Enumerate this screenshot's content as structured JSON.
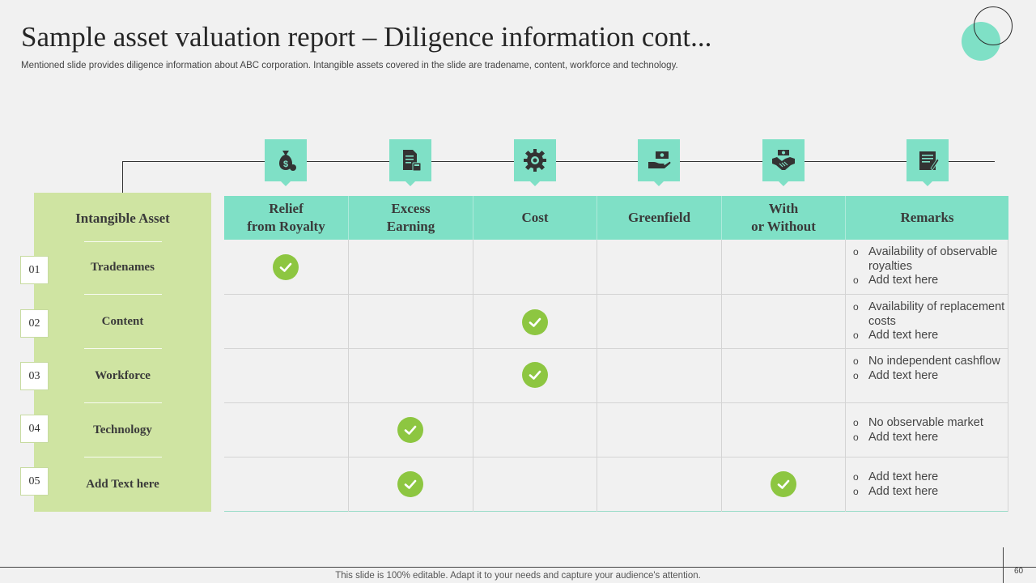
{
  "title": "Sample asset valuation report – Diligence information cont...",
  "subtitle": "Mentioned slide provides diligence information about ABC corporation. Intangible assets covered in the slide are tradename, content, workforce and technology.",
  "colors": {
    "accent": "#7fe0c6",
    "panel": "#cfe4a2",
    "check": "#8dc641",
    "background": "#f1f1f1"
  },
  "icons": [
    "money-bag-icon",
    "document-calculator-icon",
    "gear-icon",
    "hand-money-icon",
    "handshake-icon",
    "notes-icon"
  ],
  "asset_header": "Intangible Asset",
  "assets": [
    {
      "num": "01",
      "name": "Tradenames"
    },
    {
      "num": "02",
      "name": "Content"
    },
    {
      "num": "03",
      "name": "Workforce"
    },
    {
      "num": "04",
      "name": "Technology"
    },
    {
      "num": "05",
      "name": "Add Text here"
    }
  ],
  "columns": [
    {
      "line1": "Relief",
      "line2": "from Royalty"
    },
    {
      "line1": "Excess",
      "line2": "Earning"
    },
    {
      "line1": "Cost",
      "line2": ""
    },
    {
      "line1": "Greenfield",
      "line2": ""
    },
    {
      "line1": "With",
      "line2": "or Without"
    },
    {
      "line1": "Remarks",
      "line2": ""
    }
  ],
  "checks": [
    [
      "Relief from Royalty"
    ],
    [
      "Cost"
    ],
    [
      "Cost"
    ],
    [
      "Excess Earning"
    ],
    [
      "Excess Earning",
      "With or Without"
    ]
  ],
  "remarks": [
    [
      "Availability of observable royalties",
      "Add text here"
    ],
    [
      "Availability of replacement costs",
      "Add text here"
    ],
    [
      "No independent cashflow",
      "Add text here"
    ],
    [
      "No observable market",
      "Add text here"
    ],
    [
      "Add text here",
      "Add text here"
    ]
  ],
  "footer": "This slide is 100% editable. Adapt it to your needs and capture your audience's attention.",
  "page_number": "60"
}
